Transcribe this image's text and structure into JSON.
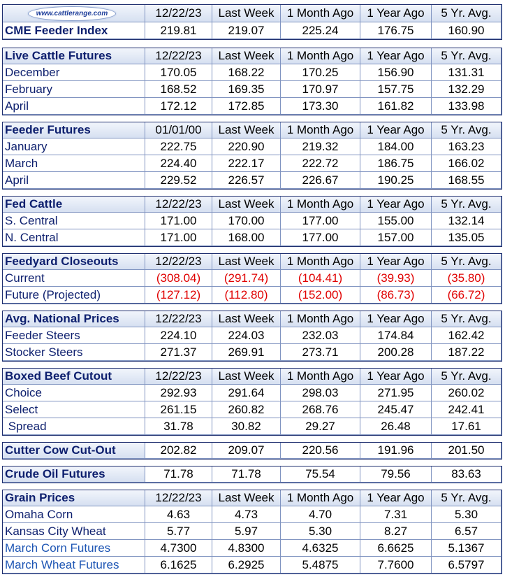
{
  "top": {
    "logo": "www.cattlerange.com",
    "headers": [
      "12/22/23",
      "Last Week",
      "1 Month Ago",
      "1 Year Ago",
      "5 Yr. Avg."
    ]
  },
  "sections": [
    {
      "title": "CME Feeder Index",
      "values": [
        "219.81",
        "219.07",
        "225.24",
        "176.75",
        "160.90"
      ],
      "rows": []
    },
    {
      "title": "Live Cattle Futures",
      "headers": [
        "12/22/23",
        "Last Week",
        "1 Month Ago",
        "1 Year Ago",
        "5 Yr. Avg."
      ],
      "rows": [
        {
          "label": "December",
          "values": [
            "170.05",
            "168.22",
            "170.25",
            "156.90",
            "131.31"
          ]
        },
        {
          "label": "February",
          "values": [
            "168.52",
            "169.35",
            "170.97",
            "157.75",
            "132.29"
          ]
        },
        {
          "label": "April",
          "values": [
            "172.12",
            "172.85",
            "173.30",
            "161.82",
            "133.98"
          ]
        }
      ]
    },
    {
      "title": "Feeder Futures",
      "headers": [
        "01/01/00",
        "Last Week",
        "1 Month Ago",
        "1 Year Ago",
        "5 Yr. Avg."
      ],
      "rows": [
        {
          "label": "January",
          "values": [
            "222.75",
            "220.90",
            "219.32",
            "184.00",
            "163.23"
          ]
        },
        {
          "label": "March",
          "values": [
            "224.40",
            "222.17",
            "222.72",
            "186.75",
            "166.02"
          ]
        },
        {
          "label": "April",
          "values": [
            "229.52",
            "226.57",
            "226.67",
            "190.25",
            "168.55"
          ]
        }
      ]
    },
    {
      "title": "Fed Cattle",
      "headers": [
        "12/22/23",
        "Last Week",
        "1 Month Ago",
        "1 Year Ago",
        "5 Yr. Avg."
      ],
      "rows": [
        {
          "label": "S. Central",
          "values": [
            "171.00",
            "170.00",
            "177.00",
            "155.00",
            "132.14"
          ]
        },
        {
          "label": "N. Central",
          "values": [
            "171.00",
            "168.00",
            "177.00",
            "157.00",
            "135.05"
          ]
        }
      ]
    },
    {
      "title": "Feedyard Closeouts",
      "headers": [
        "12/22/23",
        "Last Week",
        "1 Month Ago",
        "1 Year Ago",
        "5 Yr. Avg."
      ],
      "negative": true,
      "rows": [
        {
          "label": "Current",
          "values": [
            "(308.04)",
            "(291.74)",
            "(104.41)",
            "(39.93)",
            "(35.80)"
          ]
        },
        {
          "label": "Future (Projected)",
          "values": [
            "(127.12)",
            "(112.80)",
            "(152.00)",
            "(86.73)",
            "(66.72)"
          ]
        }
      ]
    },
    {
      "title": "Avg. National Prices",
      "headers": [
        "12/22/23",
        "Last Week",
        "1 Month Ago",
        "1 Year Ago",
        "5 Yr. Avg."
      ],
      "rows": [
        {
          "label": "Feeder Steers",
          "values": [
            "224.10",
            "224.03",
            "232.03",
            "174.84",
            "162.42"
          ]
        },
        {
          "label": "Stocker Steers",
          "values": [
            "271.37",
            "269.91",
            "273.71",
            "200.28",
            "187.22"
          ]
        }
      ]
    },
    {
      "title": "Boxed Beef Cutout",
      "headers": [
        "12/22/23",
        "Last Week",
        "1 Month Ago",
        "1 Year Ago",
        "5 Yr. Avg."
      ],
      "rows": [
        {
          "label": "Choice",
          "values": [
            "292.93",
            "291.64",
            "298.03",
            "271.95",
            "260.02"
          ]
        },
        {
          "label": "Select",
          "values": [
            "261.15",
            "260.82",
            "268.76",
            "245.47",
            "242.41"
          ]
        },
        {
          "label": " Spread",
          "values": [
            "31.78",
            "30.82",
            "29.27",
            "26.48",
            "17.61"
          ]
        }
      ]
    },
    {
      "title": "Cutter Cow Cut-Out",
      "values": [
        "202.82",
        "209.07",
        "220.56",
        "191.96",
        "201.50"
      ],
      "rows": []
    },
    {
      "title": "Crude Oil Futures",
      "values": [
        "71.78",
        "71.78",
        "75.54",
        "79.56",
        "83.63"
      ],
      "rows": []
    },
    {
      "title": "Grain Prices",
      "headers": [
        "12/22/23",
        "Last Week",
        "1 Month Ago",
        "1 Year Ago",
        "5 Yr. Avg."
      ],
      "rows": [
        {
          "label": "Omaha Corn",
          "values": [
            "4.63",
            "4.73",
            "4.70",
            "7.31",
            "5.30"
          ]
        },
        {
          "label": "Kansas City Wheat",
          "values": [
            "5.77",
            "5.97",
            "5.30",
            "8.27",
            "6.57"
          ]
        },
        {
          "label": "March Corn Futures",
          "values": [
            "4.7300",
            "4.8300",
            "4.6325",
            "6.6625",
            "5.1367"
          ],
          "link": true
        },
        {
          "label": "March Wheat Futures",
          "values": [
            "6.1625",
            "6.2925",
            "5.4875",
            "7.7600",
            "6.5797"
          ],
          "link": true
        }
      ]
    }
  ]
}
